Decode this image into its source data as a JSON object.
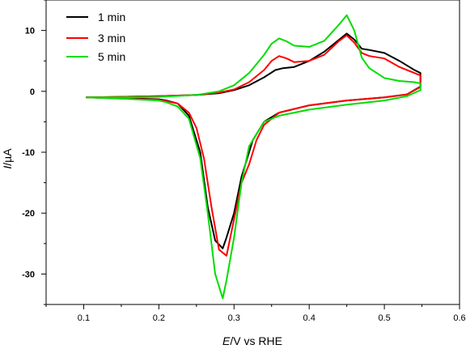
{
  "chart_data": {
    "type": "line",
    "xlabel_italic": "E",
    "xlabel_rest": "/V vs RHE",
    "ylabel_italic": "I",
    "ylabel_rest": "/µA",
    "xlim": [
      0.05,
      0.6
    ],
    "ylim": [
      -35,
      15
    ],
    "xticks": [
      0.1,
      0.2,
      0.3,
      0.4,
      0.5,
      0.6
    ],
    "xtick_labels": [
      "0.1",
      "0.2",
      "0.3",
      "0.4",
      "0.5",
      "0.6"
    ],
    "yticks": [
      -30,
      -20,
      -10,
      0,
      10
    ],
    "ytick_labels": [
      "-30",
      "-20",
      "-10",
      "0",
      "10"
    ],
    "grid": false,
    "legend_position": "top-left",
    "series": [
      {
        "name": "1 min",
        "color": "#000000",
        "x": [
          0.103,
          0.15,
          0.2,
          0.25,
          0.28,
          0.3,
          0.32,
          0.34,
          0.355,
          0.365,
          0.38,
          0.4,
          0.42,
          0.44,
          0.45,
          0.46,
          0.47,
          0.48,
          0.5,
          0.52,
          0.54,
          0.548,
          0.548,
          0.53,
          0.5,
          0.45,
          0.4,
          0.36,
          0.34,
          0.325,
          0.31,
          0.3,
          0.29,
          0.285,
          0.275,
          0.265,
          0.255,
          0.24,
          0.225,
          0.21,
          0.2,
          0.15,
          0.103
        ],
        "y": [
          -1.0,
          -0.9,
          -0.8,
          -0.6,
          -0.3,
          0.2,
          1.0,
          2.3,
          3.5,
          3.8,
          4.0,
          5.0,
          6.5,
          8.5,
          9.5,
          8.5,
          7.0,
          6.8,
          6.3,
          5.0,
          3.5,
          3.0,
          0.8,
          -0.5,
          -1.0,
          -1.5,
          -2.3,
          -3.5,
          -5.0,
          -8.0,
          -14.0,
          -20.0,
          -24.0,
          -25.8,
          -24.5,
          -19.0,
          -10.0,
          -4.0,
          -2.0,
          -1.5,
          -1.3,
          -1.1,
          -1.0
        ]
      },
      {
        "name": "3 min",
        "color": "#ff0000",
        "x": [
          0.103,
          0.15,
          0.2,
          0.25,
          0.28,
          0.3,
          0.32,
          0.34,
          0.35,
          0.36,
          0.37,
          0.38,
          0.4,
          0.42,
          0.44,
          0.45,
          0.46,
          0.47,
          0.48,
          0.5,
          0.52,
          0.54,
          0.548,
          0.548,
          0.53,
          0.5,
          0.45,
          0.4,
          0.36,
          0.34,
          0.33,
          0.32,
          0.31,
          0.3,
          0.29,
          0.28,
          0.27,
          0.26,
          0.25,
          0.24,
          0.225,
          0.21,
          0.2,
          0.15,
          0.103
        ],
        "y": [
          -1.0,
          -0.9,
          -0.8,
          -0.6,
          -0.2,
          0.3,
          1.5,
          3.5,
          5.0,
          5.8,
          5.4,
          4.8,
          5.0,
          6.0,
          8.3,
          9.2,
          8.0,
          6.3,
          5.8,
          5.4,
          4.0,
          3.0,
          2.6,
          0.7,
          -0.5,
          -1.0,
          -1.5,
          -2.3,
          -3.5,
          -5.5,
          -8.0,
          -12.0,
          -15.0,
          -21.0,
          -27.0,
          -26.0,
          -19.0,
          -11.0,
          -6.0,
          -3.5,
          -2.0,
          -1.6,
          -1.4,
          -1.2,
          -1.0
        ]
      },
      {
        "name": "5 min",
        "color": "#00dd00",
        "x": [
          0.103,
          0.15,
          0.2,
          0.25,
          0.28,
          0.3,
          0.32,
          0.34,
          0.35,
          0.36,
          0.37,
          0.38,
          0.4,
          0.42,
          0.44,
          0.45,
          0.46,
          0.47,
          0.48,
          0.5,
          0.52,
          0.54,
          0.548,
          0.548,
          0.53,
          0.5,
          0.45,
          0.4,
          0.36,
          0.34,
          0.32,
          0.31,
          0.3,
          0.29,
          0.285,
          0.275,
          0.265,
          0.255,
          0.24,
          0.225,
          0.21,
          0.2,
          0.15,
          0.103
        ],
        "y": [
          -1.0,
          -1.0,
          -0.9,
          -0.6,
          0.0,
          1.0,
          3.0,
          6.0,
          7.8,
          8.7,
          8.2,
          7.5,
          7.3,
          8.3,
          11.0,
          12.5,
          10.0,
          5.5,
          3.8,
          2.2,
          1.7,
          1.5,
          1.3,
          0.2,
          -0.8,
          -1.5,
          -2.2,
          -3.0,
          -4.0,
          -5.0,
          -9.0,
          -15.0,
          -24.0,
          -31.0,
          -34.0,
          -30.0,
          -20.0,
          -11.0,
          -4.5,
          -2.5,
          -1.8,
          -1.5,
          -1.2,
          -1.0
        ]
      }
    ]
  }
}
